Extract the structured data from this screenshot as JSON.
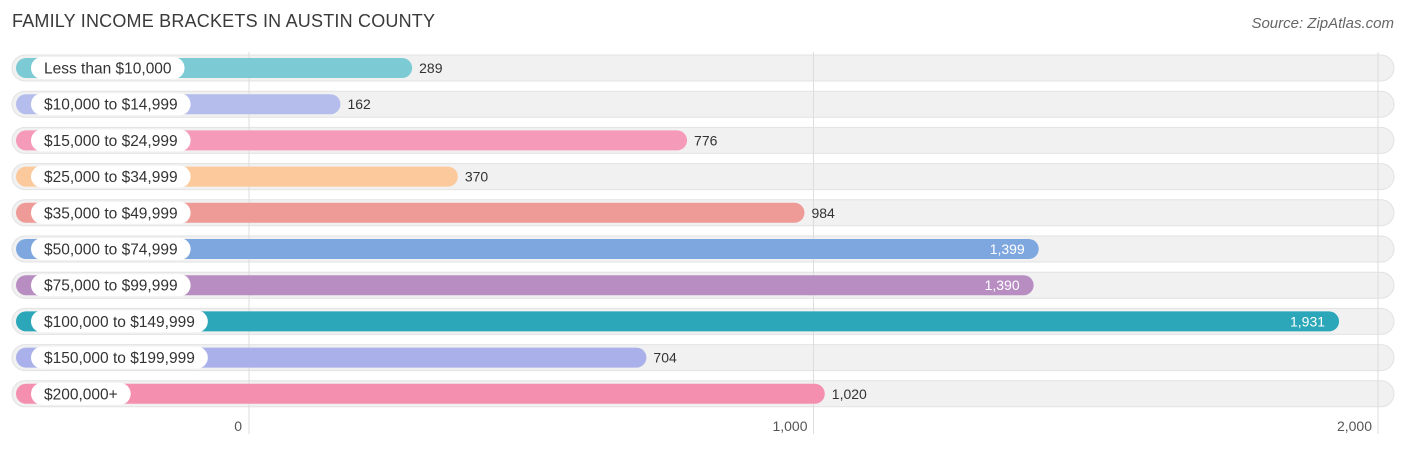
{
  "header": {
    "title": "FAMILY INCOME BRACKETS IN AUSTIN COUNTY",
    "source": "Source: ZipAtlas.com"
  },
  "chart_data": {
    "type": "bar",
    "orientation": "horizontal",
    "title": "FAMILY INCOME BRACKETS IN AUSTIN COUNTY",
    "categories": [
      "Less than $10,000",
      "$10,000 to $14,999",
      "$15,000 to $24,999",
      "$25,000 to $34,999",
      "$35,000 to $49,999",
      "$50,000 to $74,999",
      "$75,000 to $99,999",
      "$100,000 to $149,999",
      "$150,000 to $199,999",
      "$200,000+"
    ],
    "values": [
      289,
      162,
      776,
      370,
      984,
      1399,
      1390,
      1931,
      704,
      1020
    ],
    "value_labels": [
      "289",
      "162",
      "776",
      "370",
      "984",
      "1,399",
      "1,390",
      "1,931",
      "704",
      "1,020"
    ],
    "colors": [
      "#7ccbd4",
      "#b4bdec",
      "#f59ab8",
      "#fbc99b",
      "#ee9a97",
      "#7ea7e0",
      "#b88ec2",
      "#2ba7b9",
      "#a9b0ea",
      "#f58fb0"
    ],
    "xlim": [
      0,
      2000
    ],
    "ticks": [
      0,
      1000,
      2000
    ],
    "tick_labels": [
      "0",
      "1,000",
      "2,000"
    ],
    "grid": true,
    "xlabel": "",
    "ylabel": ""
  }
}
